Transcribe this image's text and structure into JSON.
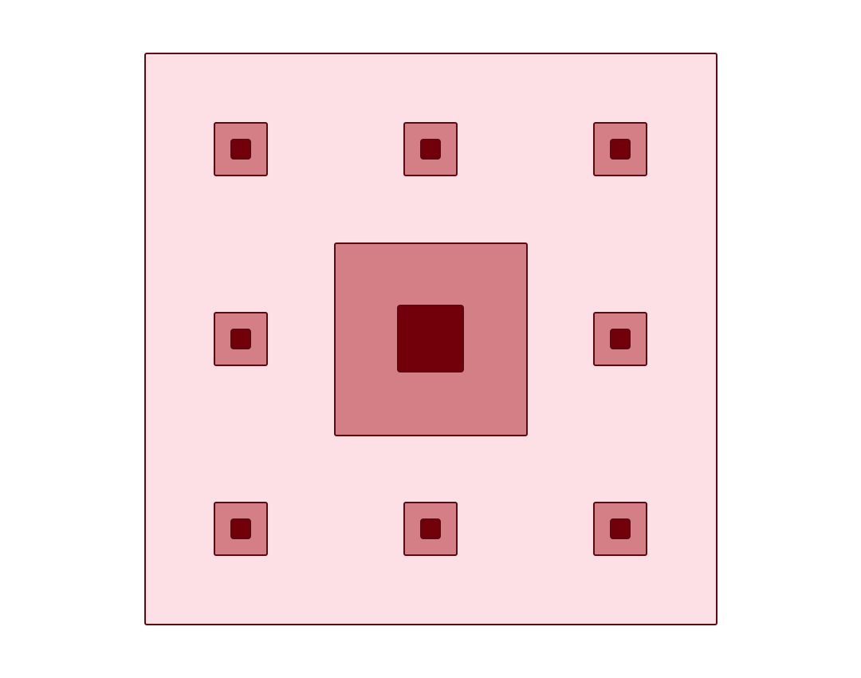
{
  "diagram": {
    "description_type": "nested-squares",
    "colors": {
      "background": "#ffffff",
      "outer_fill": "#fde0e6",
      "middle_fill": "#d47f86",
      "inner_fill": "#71000b",
      "stroke": "#5a0a10"
    },
    "layout": {
      "outer_square": {
        "shape": "square",
        "fill_role": "outer_fill"
      },
      "center_block": {
        "shape": "square",
        "fill_role": "middle_fill",
        "inner_fill_role": "inner_fill"
      },
      "small_blocks": {
        "grid": "3x3",
        "omit_center": true,
        "fill_role": "middle_fill",
        "inner_fill_role": "inner_fill"
      }
    }
  }
}
